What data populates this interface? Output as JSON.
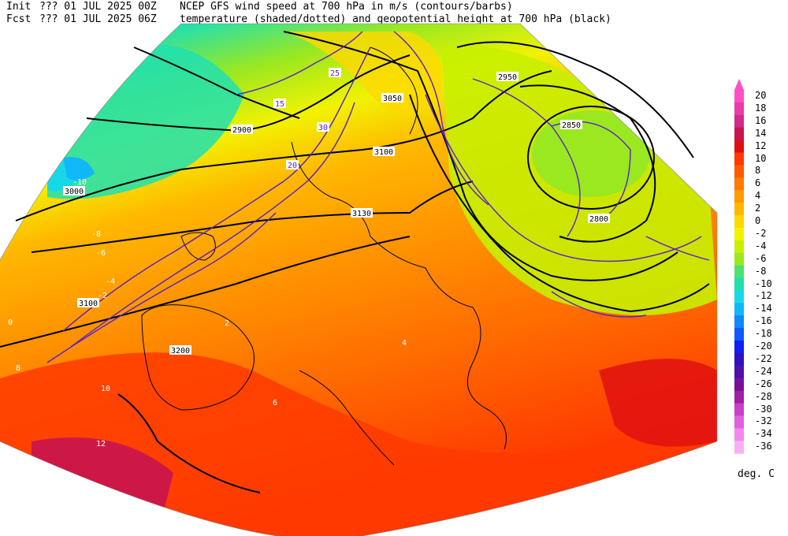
{
  "header": {
    "init_label": "Init",
    "init_time": "??? 01 JUL 2025 00Z",
    "fcst_label": "Fcst",
    "fcst_time": "??? 01 JUL 2025 06Z",
    "line1": "NCEP GFS wind speed at 700 hPa in m/s (contours/barbs)",
    "line2": "temperature (shaded/dotted) and geopotential height at 700 hPa (black)"
  },
  "map": {
    "projection": "polar-stereographic sector",
    "region": "Europe / North Atlantic",
    "height_contour_labels": [
      "2900",
      "2950",
      "3000",
      "3050",
      "3100",
      "3130",
      "3200",
      "2850",
      "2800",
      "3100"
    ],
    "wind_contour_labels": [
      "15",
      "20",
      "25",
      "30"
    ],
    "temperature_contour_labels": [
      "-10",
      "-8",
      "-6",
      "-4",
      "-2",
      "0",
      "2",
      "4",
      "6",
      "8",
      "10",
      "12"
    ],
    "colors": {
      "height_contour": "#000000",
      "wind_contour": "#5a1fc8",
      "coastline": "#000000"
    }
  },
  "colorbar": {
    "units": "deg. C",
    "entries": [
      {
        "label": "20",
        "color": "#ff4fc6"
      },
      {
        "label": "18",
        "color": "#ee3aa8"
      },
      {
        "label": "16",
        "color": "#d22a8a"
      },
      {
        "label": "14",
        "color": "#c8144f"
      },
      {
        "label": "12",
        "color": "#e01010"
      },
      {
        "label": "10",
        "color": "#ff3a00"
      },
      {
        "label": "8",
        "color": "#ff5a00"
      },
      {
        "label": "6",
        "color": "#ff7a00"
      },
      {
        "label": "4",
        "color": "#ff9a00"
      },
      {
        "label": "2",
        "color": "#ffb800"
      },
      {
        "label": "0",
        "color": "#ffd800"
      },
      {
        "label": "-2",
        "color": "#f2f200"
      },
      {
        "label": "-4",
        "color": "#c8f000"
      },
      {
        "label": "-6",
        "color": "#9ae820"
      },
      {
        "label": "-8",
        "color": "#50e070"
      },
      {
        "label": "-10",
        "color": "#20e0b0"
      },
      {
        "label": "-12",
        "color": "#18d8e8"
      },
      {
        "label": "-14",
        "color": "#10b8f8"
      },
      {
        "label": "-16",
        "color": "#1088ff"
      },
      {
        "label": "-18",
        "color": "#1058ff"
      },
      {
        "label": "-20",
        "color": "#1020f0"
      },
      {
        "label": "-22",
        "color": "#3010c0"
      },
      {
        "label": "-24",
        "color": "#5010a8"
      },
      {
        "label": "-26",
        "color": "#7a1098"
      },
      {
        "label": "-28",
        "color": "#a020a0"
      },
      {
        "label": "-30",
        "color": "#c840c8"
      },
      {
        "label": "-32",
        "color": "#e060e0"
      },
      {
        "label": "-34",
        "color": "#f088ee"
      },
      {
        "label": "-36",
        "color": "#f8b0f4"
      }
    ]
  }
}
